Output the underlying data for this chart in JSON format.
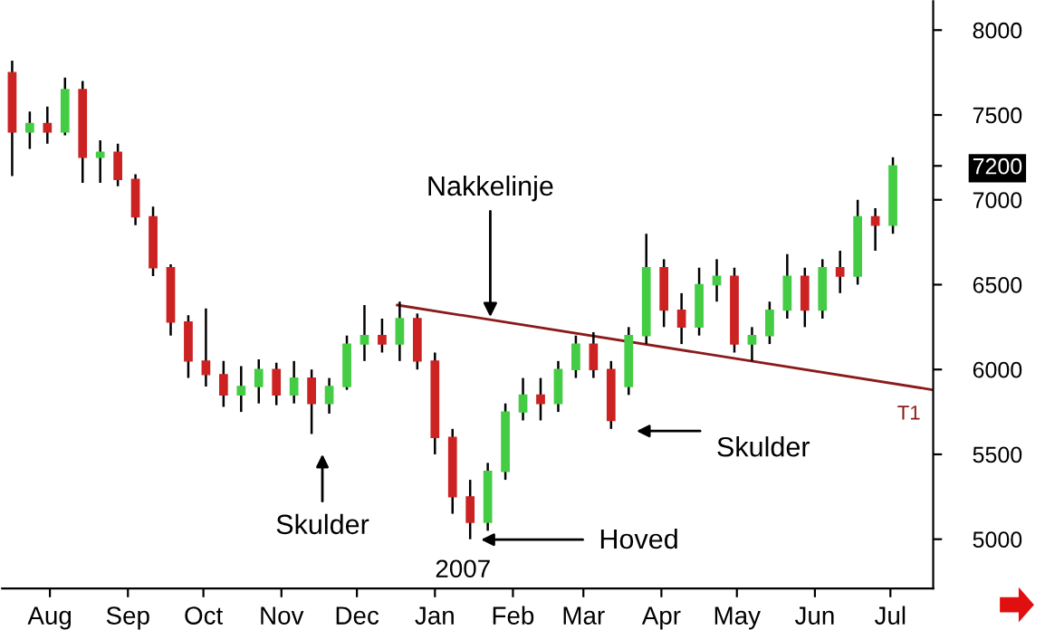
{
  "chart_data": {
    "type": "candlestick",
    "x": [
      "2006-07-17",
      "2006-07-24",
      "2006-07-31",
      "2006-08-07",
      "2006-08-14",
      "2006-08-21",
      "2006-08-28",
      "2006-09-04",
      "2006-09-11",
      "2006-09-18",
      "2006-09-25",
      "2006-10-02",
      "2006-10-09",
      "2006-10-16",
      "2006-10-23",
      "2006-10-30",
      "2006-11-06",
      "2006-11-13",
      "2006-11-20",
      "2006-11-27",
      "2006-12-04",
      "2006-12-11",
      "2006-12-18",
      "2006-12-25",
      "2007-01-01",
      "2007-01-08",
      "2007-01-15",
      "2007-01-22",
      "2007-01-29",
      "2007-02-05",
      "2007-02-12",
      "2007-02-19",
      "2007-02-26",
      "2007-03-05",
      "2007-03-12",
      "2007-03-19",
      "2007-03-26",
      "2007-04-02",
      "2007-04-09",
      "2007-04-16",
      "2007-04-23",
      "2007-04-30",
      "2007-05-07",
      "2007-05-14",
      "2007-05-21",
      "2007-05-28",
      "2007-06-04",
      "2007-06-11",
      "2007-06-18",
      "2007-06-25",
      "2007-07-02"
    ],
    "ohlc": [
      [
        7750,
        7820,
        7140,
        7400
      ],
      [
        7400,
        7520,
        7300,
        7450
      ],
      [
        7450,
        7550,
        7330,
        7400
      ],
      [
        7400,
        7720,
        7380,
        7650
      ],
      [
        7650,
        7700,
        7100,
        7250
      ],
      [
        7250,
        7350,
        7100,
        7280
      ],
      [
        7280,
        7330,
        7080,
        7120
      ],
      [
        7120,
        7150,
        6850,
        6900
      ],
      [
        6900,
        6960,
        6550,
        6600
      ],
      [
        6600,
        6620,
        6200,
        6280
      ],
      [
        6280,
        6320,
        5950,
        6050
      ],
      [
        6050,
        6360,
        5900,
        5970
      ],
      [
        5970,
        6050,
        5780,
        5850
      ],
      [
        5850,
        6020,
        5750,
        5900
      ],
      [
        5900,
        6060,
        5800,
        6000
      ],
      [
        6000,
        6040,
        5790,
        5850
      ],
      [
        5850,
        6050,
        5800,
        5950
      ],
      [
        5950,
        6000,
        5620,
        5800
      ],
      [
        5800,
        5950,
        5740,
        5900
      ],
      [
        5900,
        6200,
        5880,
        6150
      ],
      [
        6150,
        6380,
        6050,
        6200
      ],
      [
        6200,
        6300,
        6100,
        6150
      ],
      [
        6150,
        6400,
        6050,
        6300
      ],
      [
        6300,
        6330,
        6000,
        6050
      ],
      [
        6050,
        6100,
        5500,
        5600
      ],
      [
        5600,
        5650,
        5150,
        5250
      ],
      [
        5250,
        5350,
        5000,
        5100
      ],
      [
        5100,
        5450,
        5050,
        5400
      ],
      [
        5400,
        5800,
        5350,
        5750
      ],
      [
        5750,
        5950,
        5700,
        5850
      ],
      [
        5850,
        5950,
        5700,
        5800
      ],
      [
        5800,
        6050,
        5750,
        6000
      ],
      [
        6000,
        6200,
        5950,
        6150
      ],
      [
        6150,
        6220,
        5950,
        6000
      ],
      [
        6000,
        6050,
        5650,
        5700
      ],
      [
        5900,
        6250,
        5850,
        6200
      ],
      [
        6200,
        6800,
        6150,
        6600
      ],
      [
        6600,
        6650,
        6250,
        6350
      ],
      [
        6350,
        6450,
        6150,
        6250
      ],
      [
        6250,
        6600,
        6200,
        6500
      ],
      [
        6500,
        6650,
        6400,
        6550
      ],
      [
        6550,
        6600,
        6100,
        6150
      ],
      [
        6150,
        6250,
        6050,
        6200
      ],
      [
        6200,
        6400,
        6150,
        6350
      ],
      [
        6350,
        6680,
        6300,
        6550
      ],
      [
        6550,
        6600,
        6250,
        6350
      ],
      [
        6350,
        6650,
        6300,
        6600
      ],
      [
        6600,
        6700,
        6450,
        6550
      ],
      [
        6550,
        7000,
        6500,
        6900
      ],
      [
        6900,
        6950,
        6700,
        6850
      ],
      [
        6850,
        7250,
        6800,
        7200
      ]
    ],
    "colors": [
      "#cc2222",
      "#44cc44",
      "#cc2222",
      "#44cc44",
      "#cc2222",
      "#44cc44",
      "#cc2222",
      "#cc2222",
      "#cc2222",
      "#cc2222",
      "#cc2222",
      "#cc2222",
      "#cc2222",
      "#44cc44",
      "#44cc44",
      "#cc2222",
      "#44cc44",
      "#cc2222",
      "#44cc44",
      "#44cc44",
      "#44cc44",
      "#cc2222",
      "#44cc44",
      "#cc2222",
      "#cc2222",
      "#cc2222",
      "#cc2222",
      "#44cc44",
      "#44cc44",
      "#44cc44",
      "#cc2222",
      "#44cc44",
      "#44cc44",
      "#cc2222",
      "#cc2222",
      "#44cc44",
      "#44cc44",
      "#cc2222",
      "#cc2222",
      "#44cc44",
      "#44cc44",
      "#cc2222",
      "#44cc44",
      "#44cc44",
      "#44cc44",
      "#cc2222",
      "#44cc44",
      "#cc2222",
      "#44cc44",
      "#cc2222",
      "#44cc44"
    ],
    "series": [
      {
        "type": "line",
        "x": [
          "2006-12-17",
          "2007-07-18"
        ],
        "values": [
          6380,
          5880
        ],
        "color": "#8b1a1a"
      }
    ],
    "xlim": [
      "2006-07-13",
      "2007-07-18"
    ],
    "xticks": [
      {
        "value": "2006-08-01",
        "label": "Aug"
      },
      {
        "value": "2006-09-01",
        "label": "Sep"
      },
      {
        "value": "2006-10-01",
        "label": "Oct"
      },
      {
        "value": "2006-11-01",
        "label": "Nov"
      },
      {
        "value": "2006-12-01",
        "label": "Dec"
      },
      {
        "value": "2007-01-01",
        "label": "Jan"
      },
      {
        "value": "2007-02-01",
        "label": "Feb"
      },
      {
        "value": "2007-03-01",
        "label": "Mar"
      },
      {
        "value": "2007-04-01",
        "label": "Apr"
      },
      {
        "value": "2007-05-01",
        "label": "May"
      },
      {
        "value": "2007-06-01",
        "label": "Jun"
      },
      {
        "value": "2007-07-01",
        "label": "Jul"
      }
    ],
    "ylim": [
      4710,
      8170
    ],
    "yticks": [
      5000,
      5500,
      6000,
      6500,
      7000,
      {
        "value": 7200,
        "label": "7200"
      },
      7500,
      8000
    ],
    "grid": false,
    "annotations": [
      {
        "text": "Nakkelinje",
        "x": "2007-01-23",
        "y": 6280
      },
      "Skulder",
      "Hoved",
      "Skulder",
      {
        "text": "T1",
        "x": "2007-07-13",
        "y": 5880
      },
      "2007"
    ]
  }
}
